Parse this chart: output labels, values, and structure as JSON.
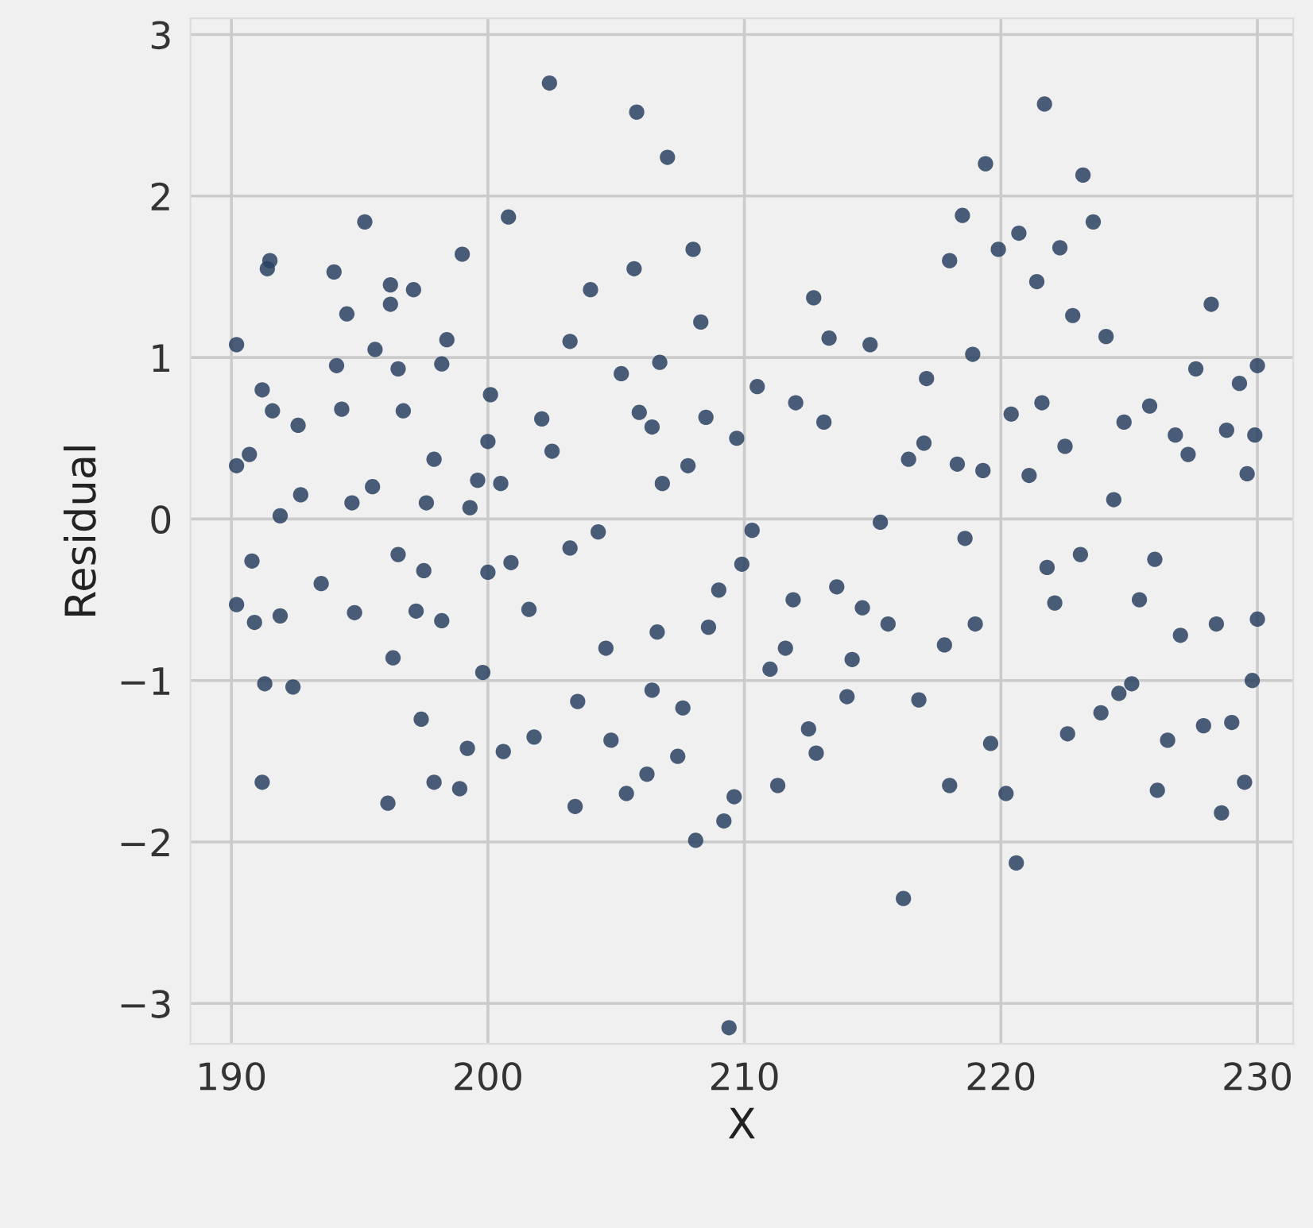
{
  "chart_data": {
    "type": "scatter",
    "xlabel": "X",
    "ylabel": "Residual",
    "xlim": [
      188.4,
      231.4
    ],
    "ylim": [
      -3.25,
      3.1
    ],
    "xticks": [
      190,
      200,
      210,
      220,
      230
    ],
    "yticks": [
      -3,
      -2,
      -1,
      0,
      1,
      2,
      3
    ],
    "grid": true,
    "marker": "circle",
    "series": [
      {
        "color": "#2a4262",
        "x": [
          190.2,
          190.2,
          190.2,
          190.7,
          190.8,
          190.9,
          191.2,
          191.5,
          191.4,
          191.6,
          191.3,
          191.2,
          191.9,
          191.9,
          192.4,
          192.6,
          192.7,
          193.5,
          194,
          194.1,
          194.3,
          194.5,
          194.7,
          194.8,
          195.2,
          195.5,
          195.6,
          196.1,
          196.2,
          196.2,
          196.3,
          196.5,
          196.5,
          196.7,
          197.1,
          197.2,
          197.4,
          197.5,
          197.6,
          197.9,
          197.9,
          198.2,
          198.4,
          198.2,
          198.9,
          199,
          199.2,
          199.3,
          199.6,
          199.8,
          200,
          200,
          200.1,
          200.5,
          200.6,
          200.8,
          200.9,
          201.6,
          201.8,
          202.1,
          202.4,
          202.5,
          203.2,
          203.2,
          203.4,
          203.5,
          204,
          204.3,
          204.6,
          204.8,
          205.2,
          205.4,
          205.7,
          205.8,
          205.9,
          206.2,
          206.4,
          206.4,
          206.6,
          206.7,
          206.8,
          207,
          207.4,
          207.6,
          207.8,
          208,
          208.1,
          208.3,
          208.5,
          208.6,
          209,
          209.2,
          209.4,
          209.6,
          209.7,
          209.9,
          210.3,
          210.5,
          211,
          211.3,
          211.6,
          211.9,
          212,
          212.5,
          212.7,
          212.8,
          213.1,
          213.3,
          213.6,
          214,
          214.2,
          214.6,
          214.9,
          215.3,
          215.6,
          216.2,
          216.4,
          216.8,
          217,
          217.1,
          217.8,
          218,
          218,
          218.3,
          218.5,
          218.6,
          218.9,
          219,
          219.3,
          219.4,
          219.6,
          219.9,
          220.2,
          220.4,
          220.6,
          220.7,
          221.1,
          221.4,
          221.6,
          221.7,
          221.8,
          222.1,
          222.3,
          222.5,
          222.6,
          222.8,
          223.1,
          223.2,
          223.6,
          223.9,
          224.1,
          224.4,
          224.6,
          224.8,
          225.1,
          225.4,
          225.8,
          226,
          226.1,
          226.5,
          226.8,
          227,
          227.3,
          227.6,
          227.9,
          228.2,
          228.4,
          228.6,
          228.8,
          229,
          229.3,
          229.5,
          229.6,
          229.8,
          229.9,
          230,
          230
        ],
        "values": [
          1.08,
          0.33,
          -0.53,
          0.4,
          -0.26,
          -0.64,
          0.8,
          1.6,
          1.55,
          0.67,
          -1.02,
          -1.63,
          0.02,
          -0.6,
          -1.04,
          0.58,
          0.15,
          -0.4,
          1.53,
          0.95,
          0.68,
          1.27,
          0.1,
          -0.58,
          1.84,
          0.2,
          1.05,
          -1.76,
          1.45,
          1.33,
          -0.86,
          0.93,
          -0.22,
          0.67,
          1.42,
          -0.57,
          -1.24,
          -0.32,
          0.1,
          0.37,
          -1.63,
          0.96,
          1.11,
          -0.63,
          -1.67,
          1.64,
          -1.42,
          0.07,
          0.24,
          -0.95,
          -0.33,
          0.48,
          0.77,
          0.22,
          -1.44,
          1.87,
          -0.27,
          -0.56,
          -1.35,
          0.62,
          2.7,
          0.42,
          -0.18,
          1.1,
          -1.78,
          -1.13,
          1.42,
          -0.08,
          -0.8,
          -1.37,
          0.9,
          -1.7,
          1.55,
          2.52,
          0.66,
          -1.58,
          -1.06,
          0.57,
          -0.7,
          0.97,
          0.22,
          2.24,
          -1.47,
          -1.17,
          0.33,
          1.67,
          -1.99,
          1.22,
          0.63,
          -0.67,
          -0.44,
          -1.87,
          -3.15,
          -1.72,
          0.5,
          -0.28,
          -0.07,
          0.82,
          -0.93,
          -1.65,
          -0.8,
          -0.5,
          0.72,
          -1.3,
          1.37,
          -1.45,
          0.6,
          1.12,
          -0.42,
          -1.1,
          -0.87,
          -0.55,
          1.08,
          -0.02,
          -0.65,
          -2.35,
          0.37,
          -1.12,
          0.47,
          0.87,
          -0.78,
          -1.65,
          1.6,
          0.34,
          1.88,
          -0.12,
          1.02,
          -0.65,
          0.3,
          2.2,
          -1.39,
          1.67,
          -1.7,
          0.65,
          -2.13,
          1.77,
          0.27,
          1.47,
          0.72,
          2.57,
          -0.3,
          -0.52,
          1.68,
          0.45,
          -1.33,
          1.26,
          -0.22,
          2.13,
          1.84,
          -1.2,
          1.13,
          0.12,
          -1.08,
          0.6,
          -1.02,
          -0.5,
          0.7,
          -0.25,
          -1.68,
          -1.37,
          0.52,
          -0.72,
          0.4,
          0.93,
          -1.28,
          1.33,
          -0.65,
          -1.82,
          0.55,
          -1.26,
          0.84,
          -1.63,
          0.28,
          -1.0,
          0.52,
          0.95,
          -0.62
        ]
      }
    ]
  }
}
